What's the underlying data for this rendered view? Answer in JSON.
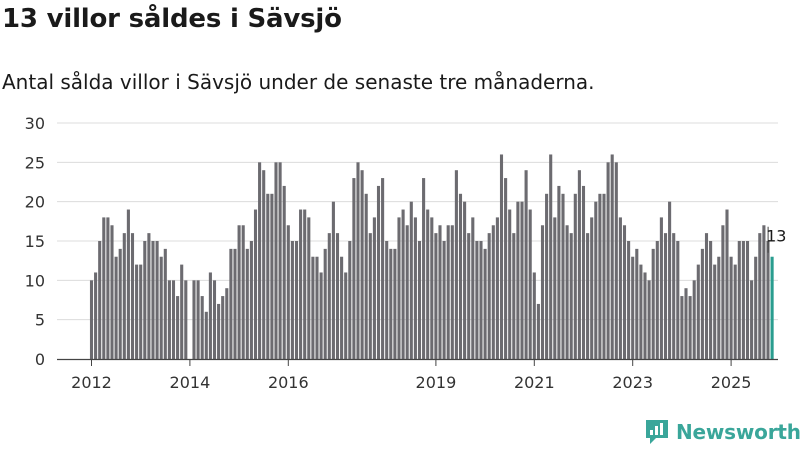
{
  "header": {
    "title": "13 villor såldes i Sävsjö",
    "subtitle": "Antal sålda villor i Sävsjö under de senaste tre månaderna."
  },
  "brand": {
    "name": "Newsworthy",
    "color": "#3aa69a"
  },
  "chart_data": {
    "type": "bar",
    "title": "13 villor såldes i Sävsjö",
    "xlabel": "",
    "ylabel": "",
    "ylim": [
      0,
      30
    ],
    "yticks": [
      0,
      5,
      10,
      15,
      20,
      25,
      30
    ],
    "xtick_labels": [
      "2012",
      "2014",
      "2016",
      "2019",
      "2021",
      "2023",
      "2025"
    ],
    "grid": true,
    "start": "2012-01",
    "bar_color": "#6c6b70",
    "highlight_color": "#2a9d8f",
    "highlight_label": "13",
    "values": [
      10,
      11,
      15,
      18,
      18,
      17,
      13,
      14,
      16,
      19,
      16,
      12,
      12,
      15,
      16,
      15,
      15,
      13,
      14,
      10,
      10,
      8,
      12,
      10,
      0,
      10,
      10,
      8,
      6,
      11,
      10,
      7,
      8,
      9,
      14,
      14,
      17,
      17,
      14,
      15,
      19,
      25,
      24,
      21,
      21,
      25,
      25,
      22,
      17,
      15,
      15,
      19,
      19,
      18,
      13,
      13,
      11,
      14,
      16,
      20,
      16,
      13,
      11,
      15,
      23,
      25,
      24,
      21,
      16,
      18,
      22,
      23,
      15,
      14,
      14,
      18,
      19,
      17,
      20,
      18,
      15,
      23,
      19,
      18,
      16,
      17,
      15,
      17,
      17,
      24,
      21,
      20,
      16,
      18,
      15,
      15,
      14,
      16,
      17,
      18,
      26,
      23,
      19,
      16,
      20,
      20,
      24,
      19,
      11,
      7,
      17,
      21,
      26,
      18,
      22,
      21,
      17,
      16,
      21,
      24,
      22,
      16,
      18,
      20,
      21,
      21,
      25,
      26,
      25,
      18,
      17,
      15,
      13,
      14,
      12,
      11,
      10,
      14,
      15,
      18,
      16,
      20,
      16,
      15,
      8,
      9,
      8,
      10,
      12,
      14,
      16,
      15,
      12,
      13,
      17,
      19,
      13,
      12,
      15,
      15,
      15,
      10,
      13,
      16,
      17,
      15,
      13
    ],
    "ticks_index": [
      0,
      24,
      48,
      84,
      108,
      132,
      156
    ]
  }
}
